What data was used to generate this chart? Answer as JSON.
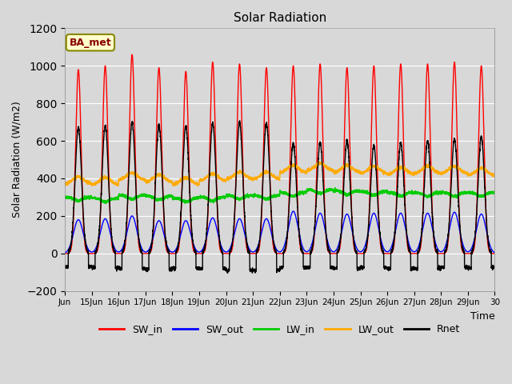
{
  "title": "Solar Radiation",
  "ylabel": "Solar Radiation (W/m2)",
  "xlabel": "Time",
  "ylim": [
    -200,
    1200
  ],
  "bg_color": "#d8d8d8",
  "series_colors": {
    "SW_in": "#ff0000",
    "SW_out": "#0000ff",
    "LW_in": "#00cc00",
    "LW_out": "#ffaa00",
    "Rnet": "#000000"
  },
  "annotation_text": "BA_met",
  "annotation_bg": "#ffffcc",
  "annotation_border": "#888800",
  "n_days": 16,
  "ppd": 288,
  "sw_in_peaks": [
    980,
    1000,
    1060,
    990,
    970,
    1020,
    1010,
    990,
    1000,
    1010,
    990,
    1000,
    1010,
    1010,
    1020,
    1000
  ],
  "sw_out_peaks": [
    180,
    185,
    200,
    175,
    175,
    190,
    185,
    185,
    225,
    215,
    210,
    215,
    215,
    215,
    220,
    210
  ],
  "lw_in_base": [
    300,
    295,
    310,
    305,
    295,
    300,
    310,
    310,
    325,
    340,
    335,
    330,
    325,
    325,
    325,
    325
  ],
  "lw_out_base": [
    370,
    365,
    390,
    380,
    365,
    385,
    395,
    395,
    430,
    440,
    430,
    425,
    420,
    425,
    425,
    415
  ],
  "rnet_peaks": [
    670,
    680,
    700,
    685,
    680,
    695,
    700,
    695,
    585,
    590,
    600,
    575,
    590,
    600,
    610,
    620
  ],
  "rnet_night": [
    -70,
    -75,
    -80,
    -85,
    -80,
    -80,
    -90,
    -90,
    -75,
    -75,
    -80,
    -75,
    -80,
    -80,
    -75,
    -75
  ],
  "tick_positions": [
    0,
    1,
    2,
    3,
    4,
    5,
    6,
    7,
    8,
    9,
    10,
    11,
    12,
    13,
    14,
    15,
    16
  ],
  "tick_labels": [
    "Jun",
    "15Jun",
    "16Jun",
    "17Jun",
    "18Jun",
    "19Jun",
    "20Jun",
    "21Jun",
    "22Jun",
    "23Jun",
    "24Jun",
    "25Jun",
    "26Jun",
    "27Jun",
    "28Jun",
    "29Jun",
    "30"
  ]
}
